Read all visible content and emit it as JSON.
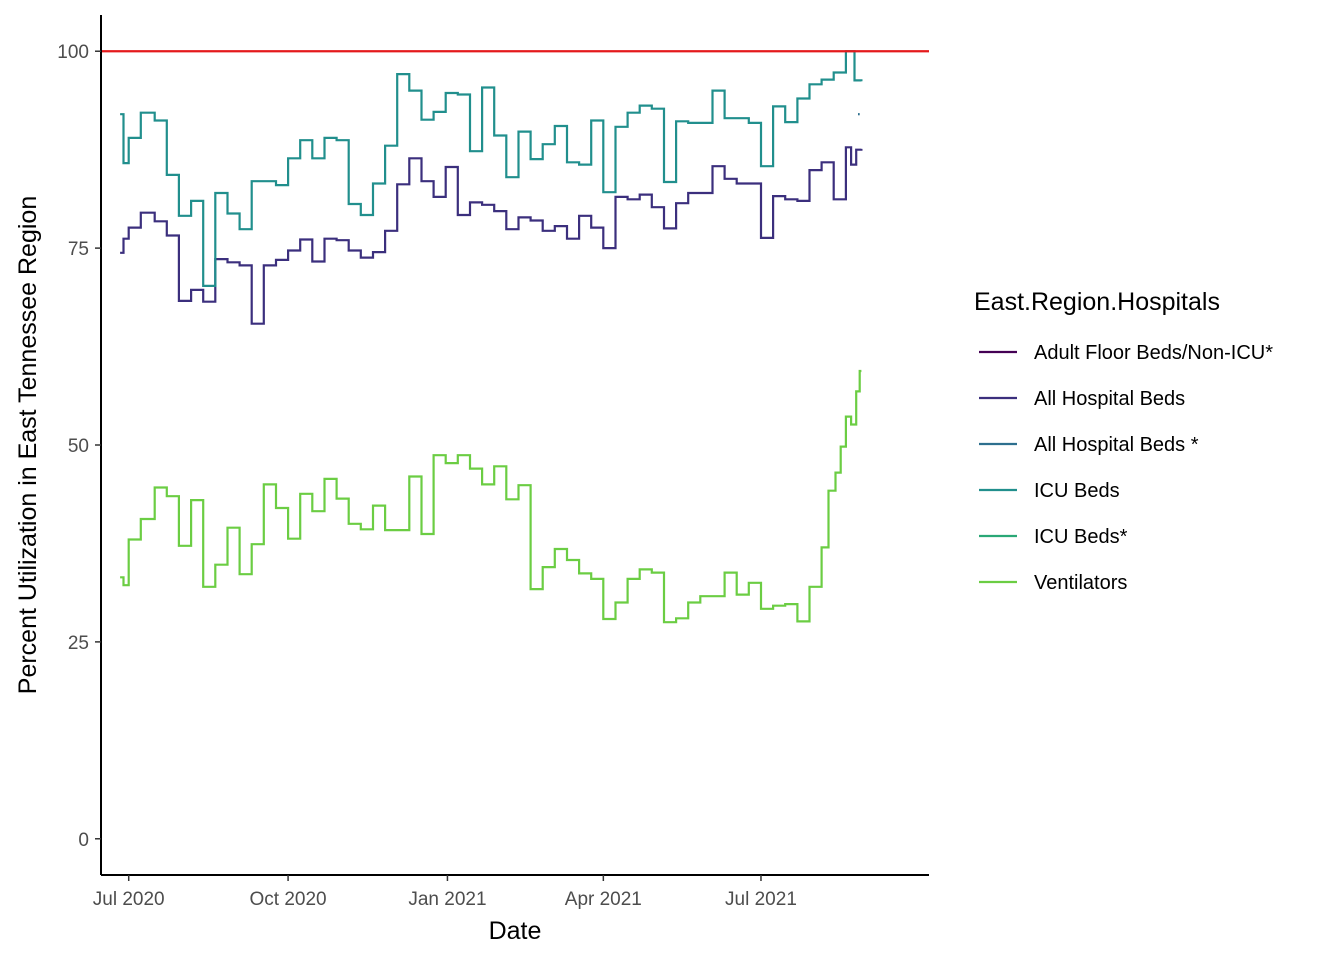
{
  "chart_data": {
    "type": "line",
    "xlabel": "Date",
    "ylabel": "Percent Utilization in East Tennessee Region",
    "xlim": [
      "2020-06-15",
      "2021-10-06"
    ],
    "ylim": [
      -4.6,
      104.6
    ],
    "x_ticks": [
      {
        "date": "2020-07-01",
        "label": "Jul 2020"
      },
      {
        "date": "2020-10-01",
        "label": "Oct 2020"
      },
      {
        "date": "2021-01-01",
        "label": "Jan 2021"
      },
      {
        "date": "2021-04-01",
        "label": "Apr 2021"
      },
      {
        "date": "2021-07-01",
        "label": "Jul 2021"
      }
    ],
    "y_ticks": [
      0,
      25,
      50,
      75,
      100
    ],
    "grid": false,
    "legend": {
      "title": "East.Region.Hospitals",
      "position": "right"
    },
    "reference_line": {
      "y": 100,
      "color": "#e41a1c"
    },
    "series": [
      {
        "name": "Adult Floor Beds/Non-ICU*",
        "color": "#440154",
        "points": []
      },
      {
        "name": "All Hospital Beds",
        "color": "#3b2f7d",
        "points": [
          [
            "2020-06-26",
            74.4
          ],
          [
            "2020-06-28",
            76.2
          ],
          [
            "2020-07-01",
            77.6
          ],
          [
            "2020-07-08",
            79.5
          ],
          [
            "2020-07-16",
            78.4
          ],
          [
            "2020-07-23",
            76.6
          ],
          [
            "2020-07-30",
            68.3
          ],
          [
            "2020-08-06",
            69.7
          ],
          [
            "2020-08-13",
            68.2
          ],
          [
            "2020-08-20",
            73.6
          ],
          [
            "2020-08-27",
            73.2
          ],
          [
            "2020-09-03",
            72.8
          ],
          [
            "2020-09-10",
            65.4
          ],
          [
            "2020-09-17",
            72.8
          ],
          [
            "2020-09-24",
            73.5
          ],
          [
            "2020-10-01",
            74.7
          ],
          [
            "2020-10-08",
            76.1
          ],
          [
            "2020-10-15",
            73.3
          ],
          [
            "2020-10-22",
            76.2
          ],
          [
            "2020-10-29",
            76.0
          ],
          [
            "2020-11-05",
            74.7
          ],
          [
            "2020-11-12",
            73.8
          ],
          [
            "2020-11-19",
            74.5
          ],
          [
            "2020-11-26",
            77.2
          ],
          [
            "2020-12-03",
            83.1
          ],
          [
            "2020-12-10",
            86.4
          ],
          [
            "2020-12-17",
            83.5
          ],
          [
            "2020-12-24",
            81.5
          ],
          [
            "2020-12-31",
            85.3
          ],
          [
            "2021-01-07",
            79.2
          ],
          [
            "2021-01-14",
            80.8
          ],
          [
            "2021-01-21",
            80.5
          ],
          [
            "2021-01-28",
            79.7
          ],
          [
            "2021-02-04",
            77.4
          ],
          [
            "2021-02-11",
            78.9
          ],
          [
            "2021-02-18",
            78.5
          ],
          [
            "2021-02-25",
            77.2
          ],
          [
            "2021-03-04",
            77.8
          ],
          [
            "2021-03-11",
            76.2
          ],
          [
            "2021-03-18",
            79.1
          ],
          [
            "2021-03-25",
            77.6
          ],
          [
            "2021-04-01",
            75.0
          ],
          [
            "2021-04-08",
            81.5
          ],
          [
            "2021-04-15",
            81.2
          ],
          [
            "2021-04-22",
            81.8
          ],
          [
            "2021-04-29",
            80.2
          ],
          [
            "2021-05-06",
            77.5
          ],
          [
            "2021-05-13",
            80.7
          ],
          [
            "2021-05-20",
            82.0
          ],
          [
            "2021-05-27",
            82.0
          ],
          [
            "2021-06-03",
            85.4
          ],
          [
            "2021-06-10",
            83.8
          ],
          [
            "2021-06-17",
            83.2
          ],
          [
            "2021-06-24",
            83.2
          ],
          [
            "2021-07-01",
            76.3
          ],
          [
            "2021-07-08",
            81.6
          ],
          [
            "2021-07-15",
            81.2
          ],
          [
            "2021-07-22",
            81.0
          ],
          [
            "2021-07-29",
            84.9
          ],
          [
            "2021-08-05",
            85.9
          ],
          [
            "2021-08-12",
            81.2
          ],
          [
            "2021-08-19",
            87.8
          ],
          [
            "2021-08-22",
            85.6
          ],
          [
            "2021-08-25",
            87.5
          ],
          [
            "2021-08-28",
            87.6
          ]
        ]
      },
      {
        "name": "All Hospital Beds *",
        "color": "#2d6f8e",
        "points": [
          [
            "2021-08-26",
            92.0
          ],
          [
            "2021-08-27",
            92.0
          ]
        ]
      },
      {
        "name": "ICU Beds",
        "color": "#218f8d",
        "points": [
          [
            "2020-06-26",
            92.0
          ],
          [
            "2020-06-28",
            85.8
          ],
          [
            "2020-07-01",
            89.0
          ],
          [
            "2020-07-08",
            92.2
          ],
          [
            "2020-07-16",
            91.2
          ],
          [
            "2020-07-23",
            84.3
          ],
          [
            "2020-07-30",
            79.1
          ],
          [
            "2020-08-06",
            81.0
          ],
          [
            "2020-08-13",
            70.2
          ],
          [
            "2020-08-20",
            82.0
          ],
          [
            "2020-08-27",
            79.4
          ],
          [
            "2020-09-03",
            77.4
          ],
          [
            "2020-09-10",
            83.5
          ],
          [
            "2020-09-17",
            83.5
          ],
          [
            "2020-09-24",
            83.0
          ],
          [
            "2020-10-01",
            86.4
          ],
          [
            "2020-10-08",
            88.7
          ],
          [
            "2020-10-15",
            86.4
          ],
          [
            "2020-10-22",
            89.0
          ],
          [
            "2020-10-29",
            88.7
          ],
          [
            "2020-11-05",
            80.6
          ],
          [
            "2020-11-12",
            79.2
          ],
          [
            "2020-11-19",
            83.2
          ],
          [
            "2020-11-26",
            88.0
          ],
          [
            "2020-12-03",
            97.1
          ],
          [
            "2020-12-10",
            95.0
          ],
          [
            "2020-12-17",
            91.3
          ],
          [
            "2020-12-24",
            92.3
          ],
          [
            "2020-12-31",
            94.7
          ],
          [
            "2021-01-07",
            94.5
          ],
          [
            "2021-01-14",
            87.3
          ],
          [
            "2021-01-21",
            95.4
          ],
          [
            "2021-01-28",
            89.3
          ],
          [
            "2021-02-04",
            84.0
          ],
          [
            "2021-02-11",
            89.8
          ],
          [
            "2021-02-18",
            86.3
          ],
          [
            "2021-02-25",
            88.2
          ],
          [
            "2021-03-04",
            90.5
          ],
          [
            "2021-03-11",
            85.9
          ],
          [
            "2021-03-18",
            85.6
          ],
          [
            "2021-03-25",
            91.2
          ],
          [
            "2021-04-01",
            82.1
          ],
          [
            "2021-04-08",
            90.4
          ],
          [
            "2021-04-15",
            92.2
          ],
          [
            "2021-04-22",
            93.1
          ],
          [
            "2021-04-29",
            92.7
          ],
          [
            "2021-05-06",
            83.4
          ],
          [
            "2021-05-13",
            91.1
          ],
          [
            "2021-05-20",
            90.9
          ],
          [
            "2021-05-27",
            90.9
          ],
          [
            "2021-06-03",
            95.0
          ],
          [
            "2021-06-10",
            91.5
          ],
          [
            "2021-06-17",
            91.5
          ],
          [
            "2021-06-24",
            90.9
          ],
          [
            "2021-07-01",
            85.4
          ],
          [
            "2021-07-08",
            93.0
          ],
          [
            "2021-07-15",
            91.0
          ],
          [
            "2021-07-22",
            94.0
          ],
          [
            "2021-07-29",
            95.8
          ],
          [
            "2021-08-05",
            96.4
          ],
          [
            "2021-08-12",
            97.3
          ],
          [
            "2021-08-19",
            100.0
          ],
          [
            "2021-08-24",
            96.3
          ],
          [
            "2021-08-28",
            96.2
          ]
        ]
      },
      {
        "name": "ICU Beds*",
        "color": "#2aa876",
        "points": []
      },
      {
        "name": "Ventilators",
        "color": "#6bcd43",
        "points": [
          [
            "2020-06-26",
            33.2
          ],
          [
            "2020-06-28",
            32.2
          ],
          [
            "2020-07-01",
            38.0
          ],
          [
            "2020-07-08",
            40.6
          ],
          [
            "2020-07-16",
            44.6
          ],
          [
            "2020-07-23",
            43.5
          ],
          [
            "2020-07-30",
            37.2
          ],
          [
            "2020-08-06",
            43.0
          ],
          [
            "2020-08-13",
            32.0
          ],
          [
            "2020-08-20",
            34.8
          ],
          [
            "2020-08-27",
            39.5
          ],
          [
            "2020-09-03",
            33.6
          ],
          [
            "2020-09-10",
            37.4
          ],
          [
            "2020-09-17",
            45.0
          ],
          [
            "2020-09-24",
            42.0
          ],
          [
            "2020-10-01",
            38.1
          ],
          [
            "2020-10-08",
            43.8
          ],
          [
            "2020-10-15",
            41.6
          ],
          [
            "2020-10-22",
            45.7
          ],
          [
            "2020-10-29",
            43.2
          ],
          [
            "2020-11-05",
            40.0
          ],
          [
            "2020-11-12",
            39.3
          ],
          [
            "2020-11-19",
            42.3
          ],
          [
            "2020-11-26",
            39.2
          ],
          [
            "2020-12-03",
            39.2
          ],
          [
            "2020-12-10",
            46.0
          ],
          [
            "2020-12-17",
            38.7
          ],
          [
            "2020-12-24",
            48.7
          ],
          [
            "2020-12-31",
            47.7
          ],
          [
            "2021-01-07",
            48.7
          ],
          [
            "2021-01-14",
            47.0
          ],
          [
            "2021-01-21",
            45.0
          ],
          [
            "2021-01-28",
            47.3
          ],
          [
            "2021-02-04",
            43.1
          ],
          [
            "2021-02-11",
            44.9
          ],
          [
            "2021-02-18",
            31.7
          ],
          [
            "2021-02-25",
            34.5
          ],
          [
            "2021-03-04",
            36.8
          ],
          [
            "2021-03-11",
            35.4
          ],
          [
            "2021-03-18",
            33.7
          ],
          [
            "2021-03-25",
            33.0
          ],
          [
            "2021-04-01",
            27.9
          ],
          [
            "2021-04-08",
            30.0
          ],
          [
            "2021-04-15",
            33.0
          ],
          [
            "2021-04-22",
            34.2
          ],
          [
            "2021-04-29",
            33.8
          ],
          [
            "2021-05-06",
            27.5
          ],
          [
            "2021-05-13",
            28.0
          ],
          [
            "2021-05-20",
            30.0
          ],
          [
            "2021-05-27",
            30.8
          ],
          [
            "2021-06-03",
            30.8
          ],
          [
            "2021-06-10",
            33.8
          ],
          [
            "2021-06-17",
            31.0
          ],
          [
            "2021-06-24",
            32.5
          ],
          [
            "2021-07-01",
            29.2
          ],
          [
            "2021-07-08",
            29.6
          ],
          [
            "2021-07-15",
            29.8
          ],
          [
            "2021-07-22",
            27.6
          ],
          [
            "2021-07-29",
            32.0
          ],
          [
            "2021-08-05",
            37.0
          ],
          [
            "2021-08-09",
            44.2
          ],
          [
            "2021-08-13",
            46.5
          ],
          [
            "2021-08-16",
            49.8
          ],
          [
            "2021-08-19",
            53.6
          ],
          [
            "2021-08-22",
            52.6
          ],
          [
            "2021-08-25",
            56.8
          ],
          [
            "2021-08-27",
            59.4
          ],
          [
            "2021-08-28",
            59.4
          ]
        ]
      }
    ]
  }
}
